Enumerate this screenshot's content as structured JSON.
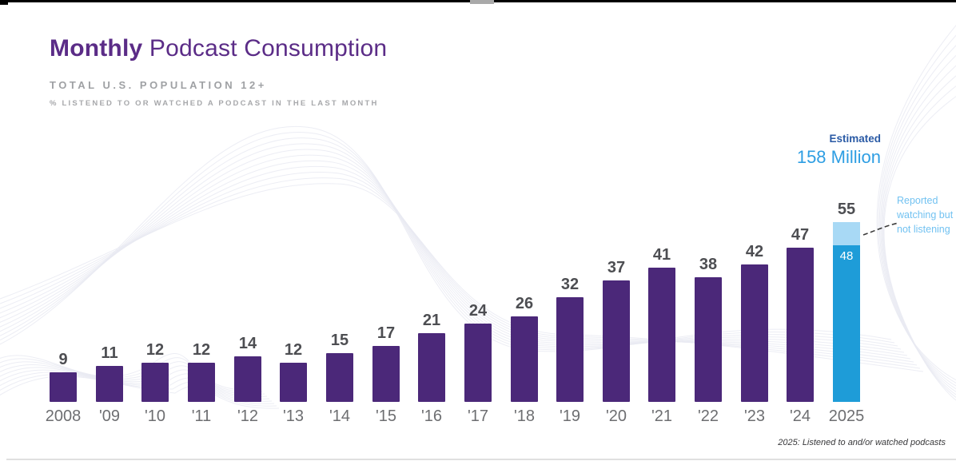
{
  "header": {
    "title_bold": "Monthly",
    "title_rest": " Podcast Consumption",
    "subtitle": "TOTAL U.S. POPULATION 12+",
    "description": "% LISTENED TO OR WATCHED A PODCAST IN THE LAST MONTH"
  },
  "annotations": {
    "estimated_label": "Estimated",
    "estimated_value": "158 Million",
    "watching_note": "Reported watching but not listening",
    "footnote": "2025: Listened to and/or watched podcasts"
  },
  "chart_data": {
    "type": "bar",
    "title": "Monthly Podcast Consumption",
    "subtitle": "Total U.S. Population 12+",
    "ylabel": "% listened to or watched a podcast in the last month",
    "xlabel": "",
    "categories": [
      "2008",
      "'09",
      "'10",
      "'11",
      "'12",
      "'13",
      "'14",
      "'15",
      "'16",
      "'17",
      "'18",
      "'19",
      "'20",
      "'21",
      "'22",
      "'23",
      "'24",
      "2025"
    ],
    "values": [
      9,
      11,
      12,
      12,
      14,
      12,
      15,
      17,
      21,
      24,
      26,
      32,
      37,
      41,
      38,
      42,
      47,
      55
    ],
    "split_2025": {
      "total": 55,
      "listened_and_or_watched": 48,
      "watched_only": 7,
      "watched_only_note": "Reported watching but not listening"
    },
    "estimated_audience": "158 Million",
    "ylim": [
      0,
      60
    ],
    "grid": false,
    "legend": "none",
    "colors": {
      "bar": "#4b2879",
      "bar_2025_light": "#a8d9f5",
      "bar_2025_dark": "#1e9cd8",
      "title_purple": "#5b2c87",
      "estimated_blue": "#2e9ee3",
      "estimated_dark_blue": "#2a5aa5",
      "note_blue": "#72c2f1",
      "value_label": "#4d4e52",
      "axis_label": "#6d6e71"
    }
  }
}
